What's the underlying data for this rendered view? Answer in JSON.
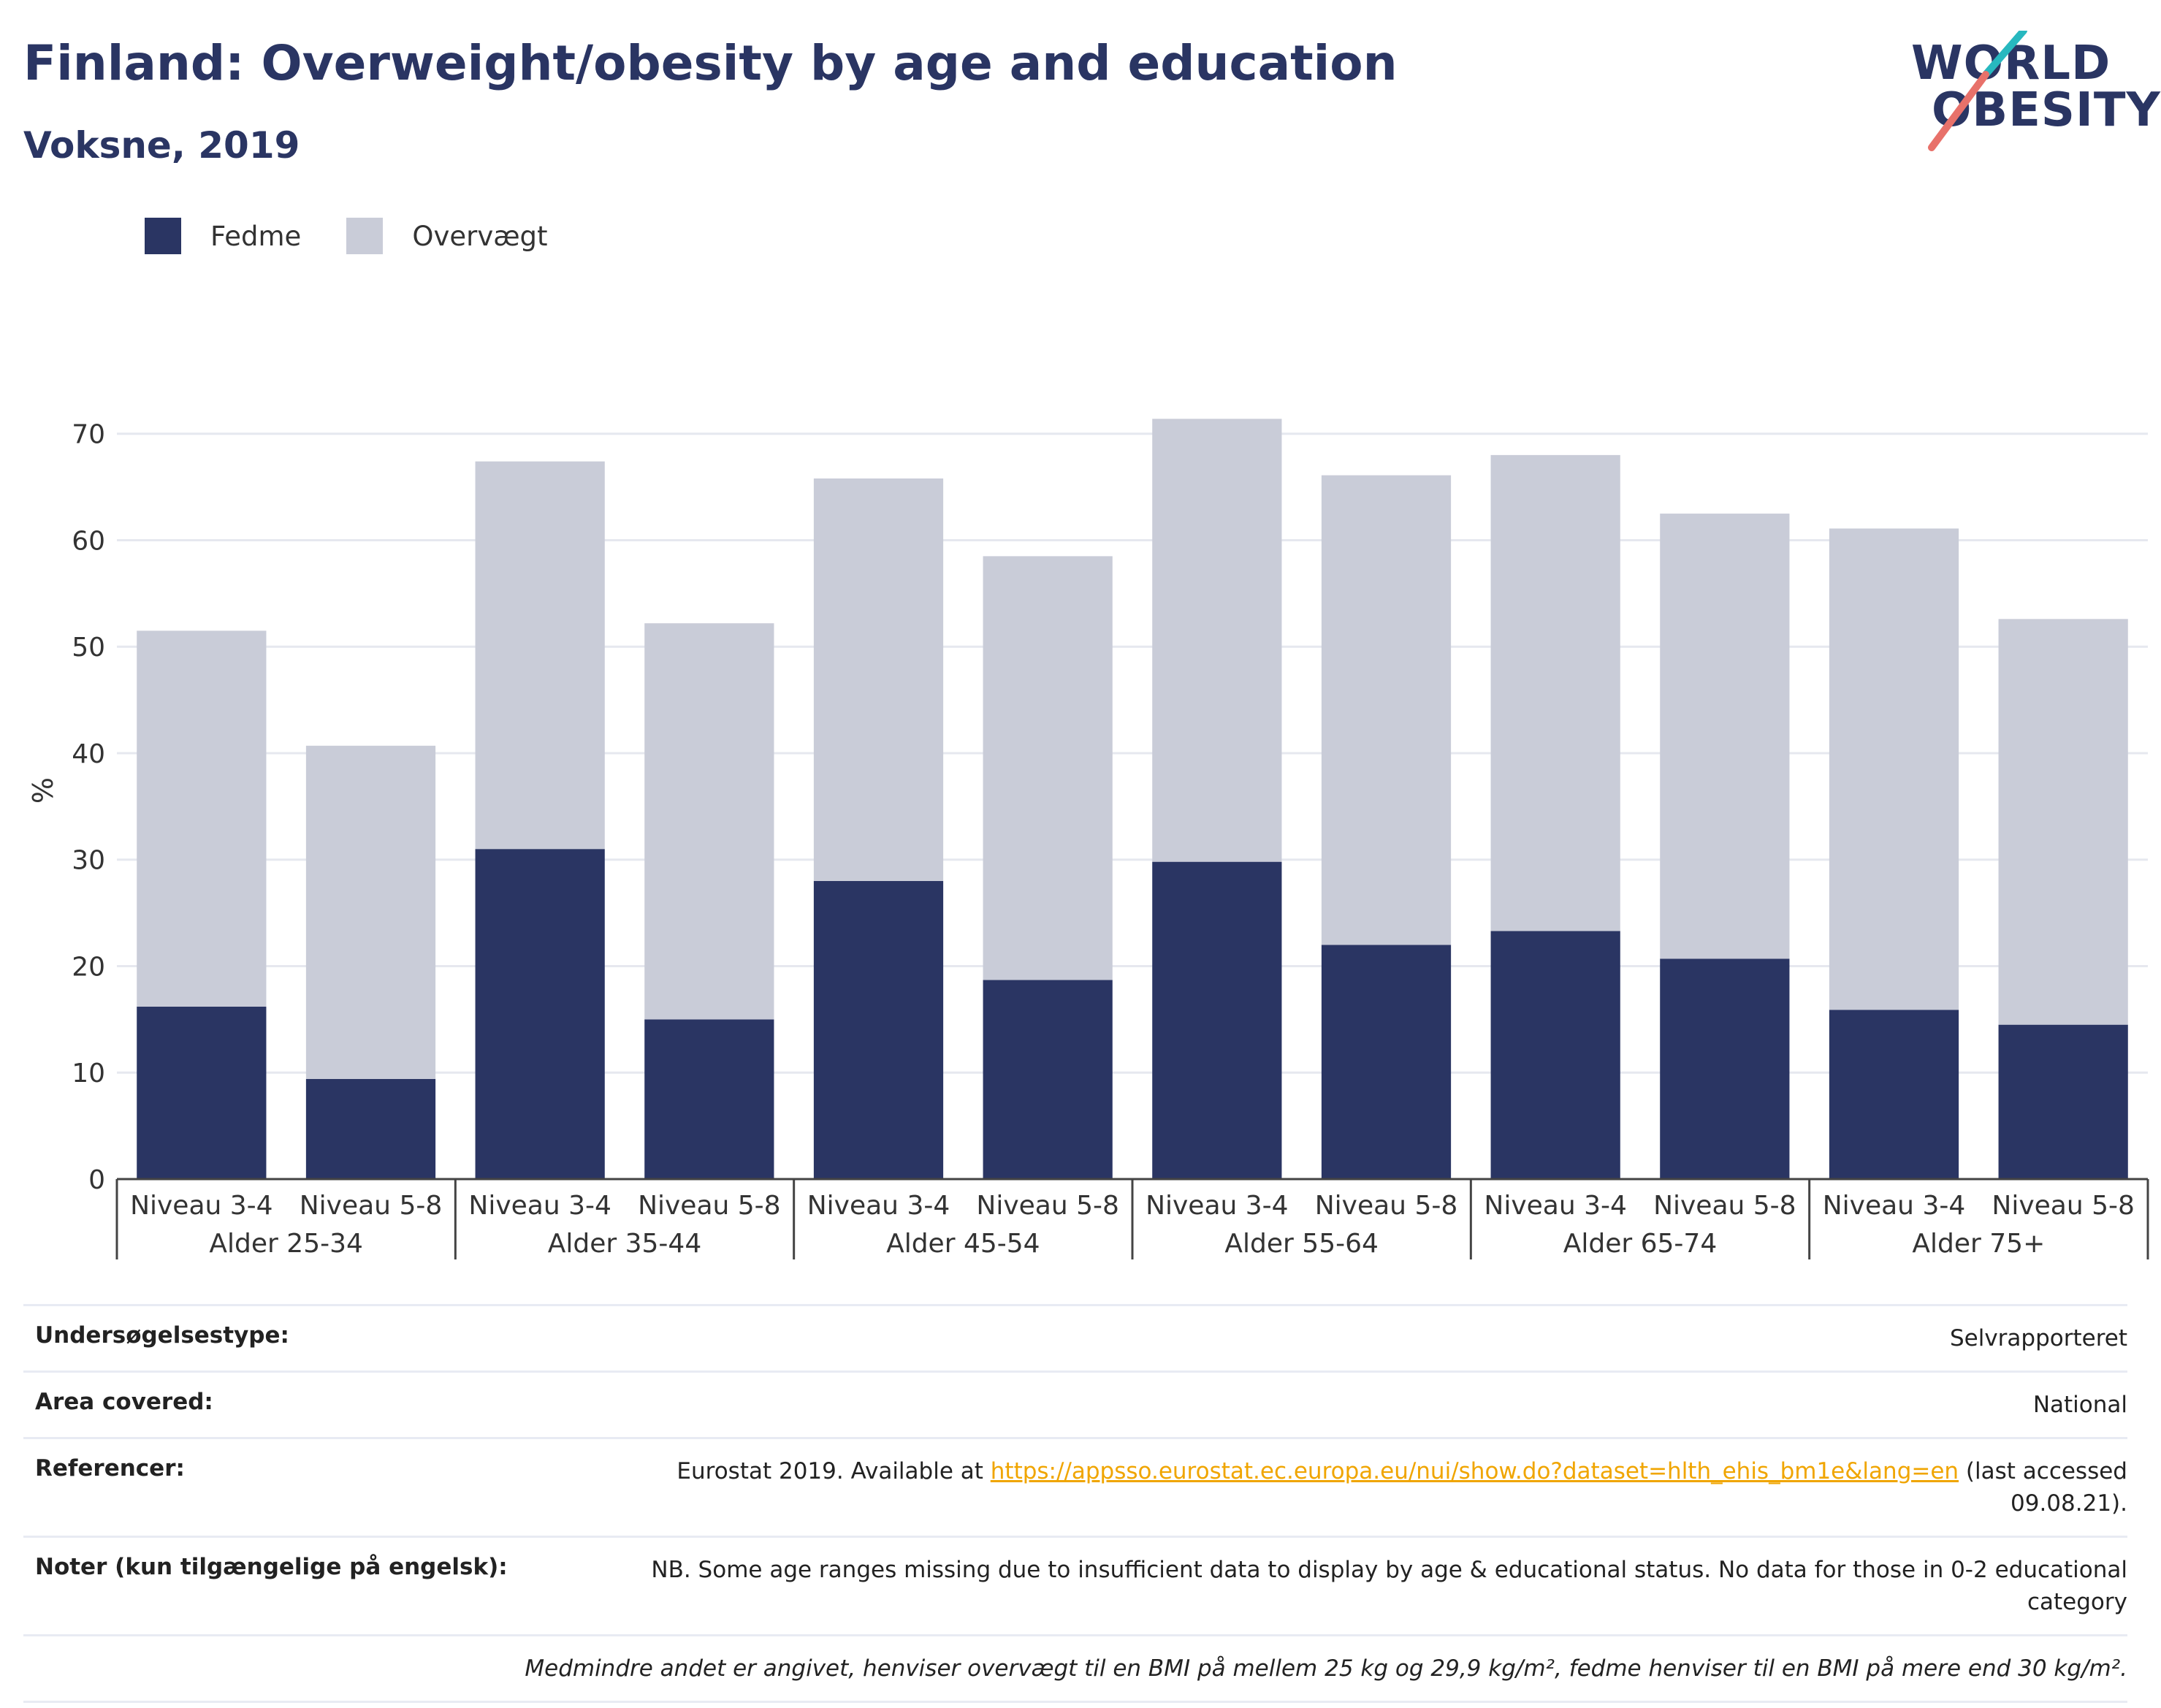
{
  "header": {
    "title": "Finland: Overweight/obesity by age and education",
    "subtitle": "Voksne, 2019"
  },
  "logo": {
    "line1": "WORLD",
    "line2": "OBESITY",
    "colors": {
      "teal": "#27b8bf",
      "coral": "#e8716a",
      "navy": "#2a3563"
    }
  },
  "legend": [
    {
      "label": "Fedme",
      "color": "#2a3563"
    },
    {
      "label": "Overvægt",
      "color": "#c9ccd8"
    }
  ],
  "chart_data": {
    "type": "bar",
    "stacked": true,
    "ylabel": "%",
    "ylim": [
      0,
      73
    ],
    "yticks": [
      0,
      10,
      20,
      30,
      40,
      50,
      60,
      70
    ],
    "grid": true,
    "legend_position": "top-left",
    "groups": [
      {
        "label": "Alder 25-34",
        "categories": [
          "Niveau 3-4",
          "Niveau 5-8"
        ]
      },
      {
        "label": "Alder 35-44",
        "categories": [
          "Niveau 3-4",
          "Niveau 5-8"
        ]
      },
      {
        "label": "Alder 45-54",
        "categories": [
          "Niveau 3-4",
          "Niveau 5-8"
        ]
      },
      {
        "label": "Alder 55-64",
        "categories": [
          "Niveau 3-4",
          "Niveau 5-8"
        ]
      },
      {
        "label": "Alder 65-74",
        "categories": [
          "Niveau 3-4",
          "Niveau 5-8"
        ]
      },
      {
        "label": "Alder 75+",
        "categories": [
          "Niveau 3-4",
          "Niveau 5-8"
        ]
      }
    ],
    "series": [
      {
        "name": "Fedme",
        "color": "#2a3563",
        "values": [
          16.2,
          9.4,
          31.0,
          15.0,
          28.0,
          18.7,
          29.8,
          22.0,
          23.3,
          20.7,
          15.9,
          14.5
        ]
      },
      {
        "name": "Overvægt",
        "color": "#c9ccd8",
        "values": [
          35.3,
          31.3,
          36.4,
          37.2,
          37.8,
          39.8,
          41.6,
          44.1,
          44.7,
          41.8,
          45.2,
          38.1
        ]
      }
    ]
  },
  "footer": {
    "survey_type": {
      "label": "Undersøgelsestype:",
      "value": "Selvrapporteret"
    },
    "area": {
      "label": "Area covered:",
      "value": "National"
    },
    "references": {
      "label": "Referencer:",
      "prefix": "Eurostat 2019. Available at ",
      "link": "https://appsso.eurostat.ec.europa.eu/nui/show.do?dataset=hlth_ehis_bm1e&lang=en",
      "suffix": " (last accessed 09.08.21)."
    },
    "notes": {
      "label": "Noter (kun tilgængelige på engelsk):",
      "value": "NB. Some age ranges missing due to insufficient data to display by age & educational status. No data for those in 0-2 educational category"
    },
    "bmi_note": "Medmindre andet er angivet, henviser overvægt til en BMI på mellem 25 kg og 29,9 kg/m², fedme henviser til en BMI på mere end 30 kg/m²."
  }
}
